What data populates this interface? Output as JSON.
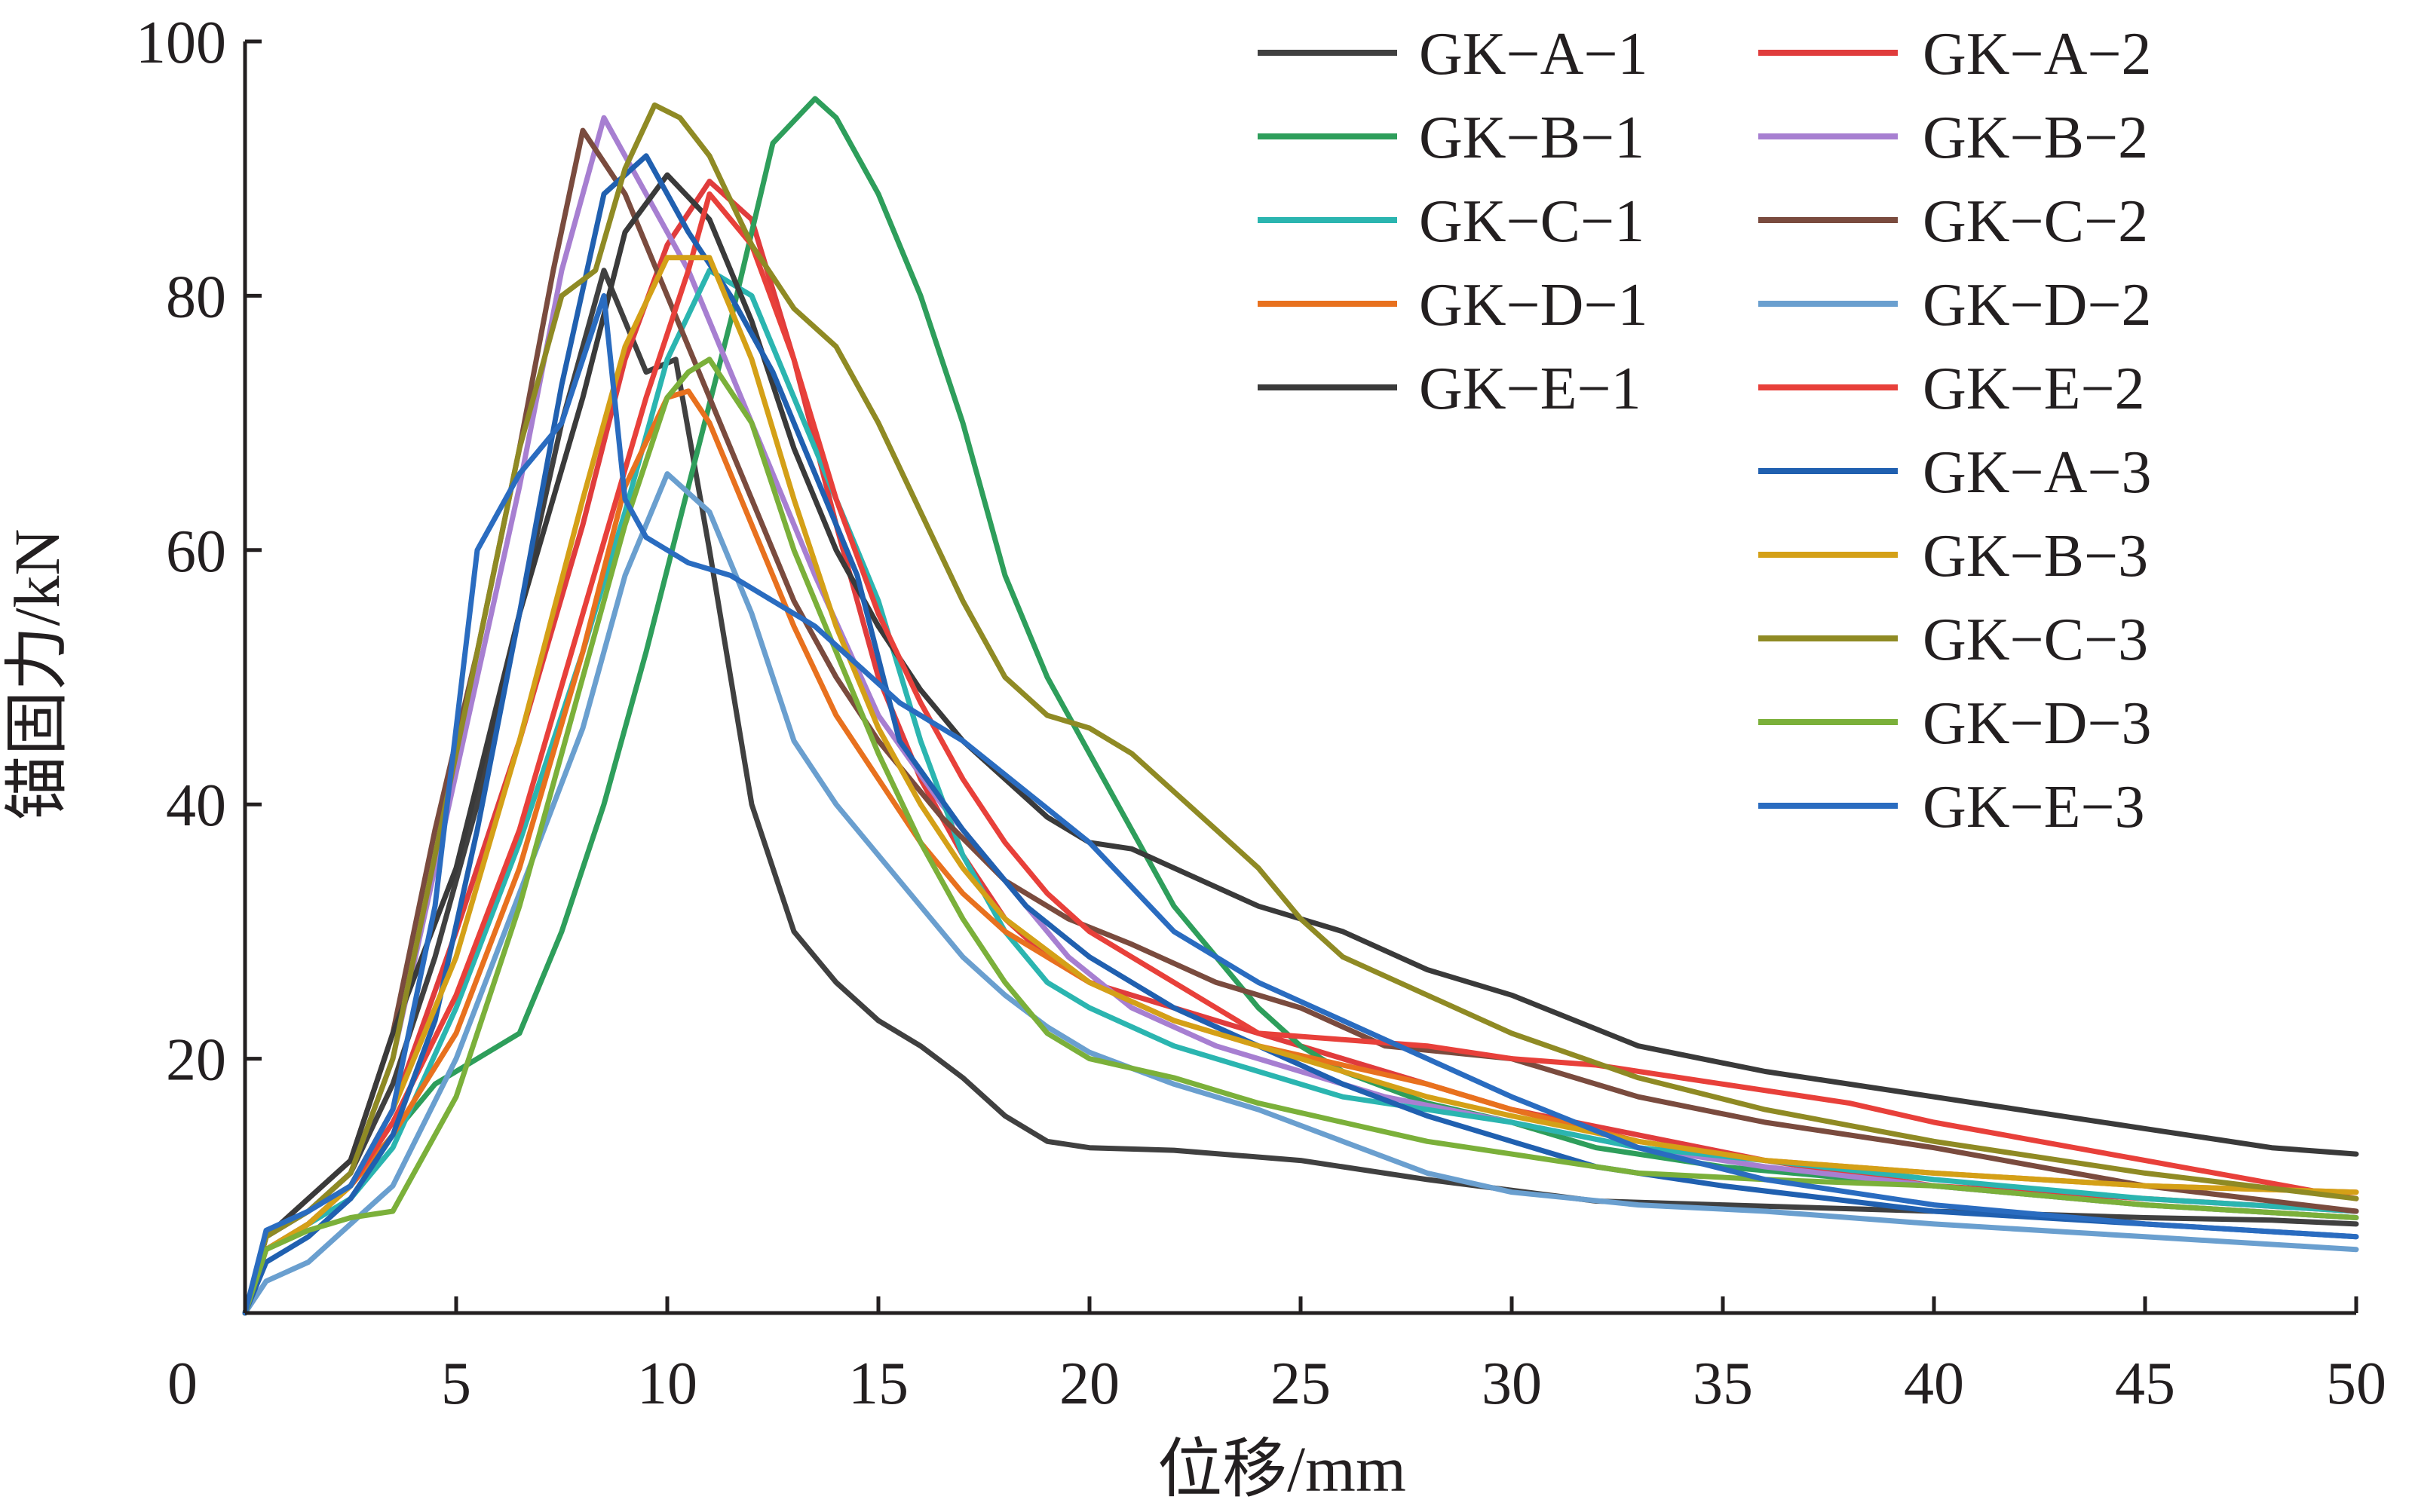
{
  "chart_data": {
    "type": "line",
    "title": "",
    "xlabel": "位移/mm",
    "ylabel": "锚固力/kN",
    "xlim": [
      0,
      50
    ],
    "ylim": [
      0,
      100
    ],
    "xticks": [
      0,
      5,
      10,
      15,
      20,
      25,
      30,
      35,
      40,
      45,
      50
    ],
    "yticks": [
      20,
      40,
      60,
      80,
      100
    ],
    "grid": false,
    "legend_position": "top-right",
    "series": [
      {
        "name": "GK−A−1",
        "color": "#404040",
        "x": [
          0,
          0.5,
          1.5,
          2.5,
          3.5,
          4.5,
          5.5,
          6.5,
          7.5,
          8.5,
          9.5,
          10.2,
          11,
          12,
          13,
          14,
          15,
          16,
          17,
          18,
          19,
          20,
          22,
          25,
          28,
          32,
          35,
          40,
          45,
          48,
          50
        ],
        "y": [
          0,
          6,
          8,
          11,
          18,
          28,
          40,
          55,
          70,
          82,
          74,
          75,
          60,
          40,
          30,
          26,
          23,
          21,
          18.5,
          15.5,
          13.5,
          13,
          12.8,
          12,
          10.5,
          8.8,
          8.5,
          8,
          7.5,
          7.3,
          7
        ]
      },
      {
        "name": "GK−A−2",
        "color": "#e03c3c",
        "x": [
          0,
          0.5,
          1.5,
          2.5,
          3.5,
          5,
          6.5,
          8,
          9,
          10,
          11,
          12,
          13,
          14,
          15,
          16,
          17,
          18,
          19,
          20,
          22,
          24,
          26,
          28,
          30,
          33,
          36,
          40,
          45,
          50
        ],
        "y": [
          0,
          5,
          7,
          10,
          16,
          30,
          45,
          62,
          75,
          84,
          89,
          86,
          75,
          62,
          50,
          42,
          36,
          31,
          28,
          26,
          24,
          22,
          20,
          18,
          16,
          14,
          12,
          10,
          9,
          8
        ]
      },
      {
        "name": "GK−B−1",
        "color": "#2e9e5b",
        "x": [
          0,
          0.5,
          1.5,
          2.5,
          3.5,
          4.5,
          5.5,
          6.5,
          7.5,
          8.5,
          9.5,
          10.5,
          11.5,
          12.5,
          13.5,
          14,
          15,
          16,
          17,
          18,
          19,
          20,
          21,
          22,
          23,
          24,
          25,
          26,
          28,
          30,
          32,
          35,
          40,
          45,
          50
        ],
        "y": [
          0,
          5,
          7,
          10,
          14,
          18,
          20,
          22,
          30,
          40,
          52,
          65,
          78,
          92,
          95.5,
          94,
          88,
          80,
          70,
          58,
          50,
          44,
          38,
          32,
          28,
          24,
          21,
          19,
          16.5,
          15,
          13,
          11.5,
          10,
          8.5,
          7.5
        ]
      },
      {
        "name": "GK−B−2",
        "color": "#a77fd1",
        "x": [
          0,
          0.5,
          1.5,
          2.5,
          3.5,
          4.5,
          5.5,
          6.5,
          7.5,
          8.5,
          9.5,
          10.5,
          11.5,
          12.5,
          13.5,
          15,
          16.5,
          18,
          19.5,
          21,
          23,
          25,
          27,
          30,
          33,
          36,
          40,
          45,
          50
        ],
        "y": [
          0,
          6,
          8,
          11,
          20,
          35,
          50,
          65,
          82,
          94,
          88,
          82,
          74,
          66,
          58,
          47,
          40,
          34,
          28,
          24,
          21,
          19,
          17,
          15,
          13,
          11.5,
          10,
          8.5,
          7.5
        ]
      },
      {
        "name": "GK−C−1",
        "color": "#2bb5b0",
        "x": [
          0,
          0.5,
          1.5,
          2.5,
          3.5,
          5,
          6.5,
          8,
          9,
          10,
          11,
          12,
          13,
          14,
          15,
          16,
          17,
          18,
          19,
          20,
          22,
          24,
          26,
          28,
          30,
          33,
          36,
          40,
          45,
          50
        ],
        "y": [
          0,
          5,
          7,
          9,
          13,
          24,
          37,
          52,
          63,
          75,
          82,
          80,
          72,
          64,
          56,
          45,
          36,
          30,
          26,
          24,
          21,
          19,
          17,
          16,
          15,
          13,
          12,
          10.5,
          9,
          8
        ]
      },
      {
        "name": "GK−C−2",
        "color": "#7a4b3e",
        "x": [
          0,
          0.5,
          1.5,
          2.5,
          3.5,
          4.5,
          5.5,
          6.5,
          7.3,
          8,
          9,
          10,
          11,
          12,
          13,
          14,
          15,
          16.5,
          18,
          19.5,
          21,
          23,
          25,
          27,
          30,
          33,
          36,
          40,
          45,
          50
        ],
        "y": [
          0,
          6,
          9,
          12,
          22,
          38,
          52,
          68,
          82,
          93,
          88,
          80,
          72,
          64,
          56,
          50,
          45,
          39,
          34,
          31,
          29,
          26,
          24,
          21,
          20,
          17,
          15,
          13,
          10,
          8
        ]
      },
      {
        "name": "GK−D−1",
        "color": "#e8711e",
        "x": [
          0,
          0.5,
          1.5,
          2.5,
          3.5,
          5,
          6.5,
          8,
          9,
          10,
          10.5,
          11,
          12,
          13,
          14,
          15,
          16,
          17,
          18,
          20,
          22,
          24,
          26,
          28,
          30,
          33,
          36,
          40,
          45,
          50
        ],
        "y": [
          0,
          5,
          7,
          10,
          14,
          22,
          35,
          52,
          65,
          72,
          72.5,
          70,
          62,
          54,
          47,
          42,
          37,
          33,
          30,
          26,
          23,
          21,
          19.5,
          18,
          16,
          13.5,
          12,
          11,
          10,
          9.5
        ]
      },
      {
        "name": "GK−D−2",
        "color": "#6a9fcf",
        "x": [
          0,
          0.5,
          1.5,
          2.5,
          3.5,
          5,
          6.5,
          8,
          9,
          10,
          11,
          12,
          13,
          14,
          15,
          16,
          17,
          18,
          19,
          20,
          22,
          24,
          26,
          28,
          30,
          33,
          36,
          40,
          45,
          50
        ],
        "y": [
          0,
          2.5,
          4,
          7,
          10,
          20,
          33,
          46,
          58,
          66,
          63,
          55,
          45,
          40,
          36,
          32,
          28,
          25,
          22.5,
          20.5,
          18,
          16,
          13.5,
          11,
          9.5,
          8.5,
          8,
          7,
          6,
          5
        ]
      },
      {
        "name": "GK−E−1",
        "color": "#3a3a3a",
        "x": [
          0,
          0.5,
          1.5,
          2.5,
          3.5,
          5,
          6.5,
          8,
          9,
          10,
          11,
          12,
          13,
          14,
          15,
          16,
          17,
          18,
          19,
          20,
          21,
          22,
          24,
          26,
          28,
          30,
          33,
          36,
          40,
          45,
          48,
          50
        ],
        "y": [
          0,
          6,
          9,
          12,
          22,
          35,
          55,
          72,
          85,
          89.5,
          86,
          78,
          68,
          60,
          54,
          49,
          45,
          42,
          39,
          37,
          36.5,
          35,
          32,
          30,
          27,
          25,
          21,
          19,
          17,
          14.5,
          13,
          12.5
        ]
      },
      {
        "name": "GK−E−2",
        "color": "#e8403a",
        "x": [
          0,
          0.5,
          1.5,
          2.5,
          3.5,
          5,
          6.5,
          8,
          9.5,
          10.5,
          11,
          12,
          13,
          14,
          15,
          16,
          17,
          18,
          19,
          20,
          22,
          24,
          26,
          28,
          30,
          32,
          35,
          38,
          40,
          45,
          50
        ],
        "y": [
          0,
          5,
          7,
          10,
          15,
          25,
          38,
          55,
          72,
          82,
          88,
          84,
          75,
          64,
          55,
          48,
          42,
          37,
          33,
          30,
          26,
          22,
          21.5,
          21,
          20,
          19.5,
          18,
          16.5,
          15,
          12,
          9
        ]
      },
      {
        "name": "GK−A−3",
        "color": "#2060b0",
        "x": [
          0,
          0.5,
          1.5,
          2.5,
          3.5,
          4.5,
          5.5,
          6.5,
          7.5,
          8.5,
          9.5,
          10.5,
          11.5,
          12.5,
          13.5,
          14.5,
          15.5,
          17,
          18.5,
          20,
          22,
          24,
          26,
          28,
          30,
          32,
          35,
          40,
          45,
          50
        ],
        "y": [
          0,
          4,
          6,
          9,
          14,
          23,
          38,
          55,
          73,
          88,
          91,
          85,
          80,
          74,
          66,
          58,
          45,
          38,
          32,
          28,
          24,
          21,
          18,
          15.5,
          13.5,
          11.5,
          10,
          8,
          7,
          6
        ]
      },
      {
        "name": "GK−B−3",
        "color": "#d4a017",
        "x": [
          0,
          0.5,
          1.5,
          2.5,
          3.5,
          5,
          6.5,
          8,
          9,
          10,
          11,
          12,
          13,
          14,
          15,
          16,
          17,
          18,
          20,
          22,
          24,
          26,
          28,
          30,
          33,
          36,
          40,
          45,
          50
        ],
        "y": [
          0,
          5,
          7,
          10,
          16,
          28,
          45,
          64,
          76,
          83,
          83,
          75,
          64,
          54,
          46,
          40,
          35,
          31,
          26,
          23,
          21,
          19,
          17,
          15.5,
          13.5,
          12,
          11,
          10,
          9.5
        ]
      },
      {
        "name": "GK−C−3",
        "color": "#8f8a24",
        "x": [
          0,
          0.5,
          1.5,
          2.5,
          3.5,
          4.5,
          5.5,
          6.5,
          7.5,
          8.3,
          9,
          9.7,
          10.3,
          11,
          12,
          13,
          14,
          15,
          16,
          17,
          18,
          19,
          20,
          21,
          22,
          23,
          24,
          25,
          26,
          28,
          30,
          33,
          36,
          40,
          45,
          50
        ],
        "y": [
          0,
          6,
          8,
          11,
          20,
          36,
          52,
          68,
          80,
          82,
          90,
          95,
          94,
          91,
          84,
          79,
          76,
          70,
          63,
          56,
          50,
          47,
          46,
          44,
          41,
          38,
          35,
          31,
          28,
          25,
          22,
          18.5,
          16,
          13.5,
          11,
          9
        ]
      },
      {
        "name": "GK−D−3",
        "color": "#7bb03a",
        "x": [
          0,
          0.5,
          1.5,
          2.5,
          3.5,
          5,
          6.5,
          8,
          9,
          10,
          10.5,
          11,
          12,
          13,
          14,
          15,
          16,
          17,
          18,
          19,
          20,
          22,
          24,
          26,
          28,
          30,
          33,
          36,
          40,
          45,
          50
        ],
        "y": [
          0,
          5,
          6.5,
          7.5,
          8,
          17,
          32,
          50,
          62,
          72,
          74,
          75,
          70,
          60,
          52,
          44,
          37,
          31,
          26,
          22,
          20,
          18.5,
          16.5,
          15,
          13.5,
          12.5,
          11,
          10.5,
          10,
          8.5,
          7.5
        ]
      },
      {
        "name": "GK−E−3",
        "color": "#2a6cc0",
        "x": [
          0,
          0.5,
          1.5,
          2.5,
          3.5,
          4.5,
          5.5,
          6.5,
          7.5,
          8.5,
          9,
          9.5,
          10.5,
          11.5,
          12.5,
          13.5,
          14.5,
          15.5,
          17,
          18.5,
          20,
          22,
          24,
          26,
          28,
          30,
          33,
          36,
          40,
          45,
          50
        ],
        "y": [
          0,
          6.5,
          8,
          10,
          16,
          32,
          60,
          66,
          70,
          80,
          64,
          61,
          59,
          58,
          56,
          54,
          51,
          48,
          45,
          41,
          37,
          30,
          26,
          23,
          20,
          17,
          13,
          10.5,
          8.5,
          7,
          6
        ]
      }
    ]
  }
}
